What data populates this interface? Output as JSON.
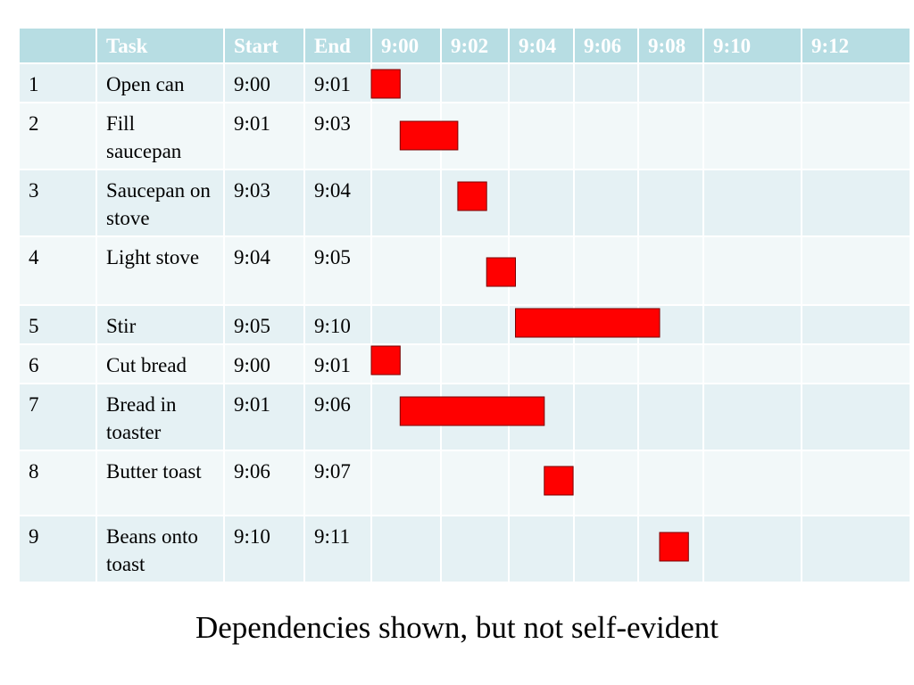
{
  "chart_data": {
    "type": "gantt",
    "columns": [
      "",
      "Task",
      "Start",
      "End"
    ],
    "time_axis": [
      "9:00",
      "9:02",
      "9:04",
      "9:06",
      "9:08",
      "9:10",
      "9:12"
    ],
    "tasks": [
      {
        "id": "1",
        "name": "Open can",
        "start": "9:00",
        "end": "9:01"
      },
      {
        "id": "2",
        "name": "Fill saucepan",
        "start": "9:01",
        "end": "9:03"
      },
      {
        "id": "3",
        "name": "Saucepan on stove",
        "start": "9:03",
        "end": "9:04"
      },
      {
        "id": "4",
        "name": "Light stove",
        "start": "9:04",
        "end": "9:05"
      },
      {
        "id": "5",
        "name": "Stir",
        "start": "9:05",
        "end": "9:10"
      },
      {
        "id": "6",
        "name": "Cut bread",
        "start": "9:00",
        "end": "9:01"
      },
      {
        "id": "7",
        "name": "Bread in toaster",
        "start": "9:01",
        "end": "9:06"
      },
      {
        "id": "8",
        "name": "Butter toast",
        "start": "9:06",
        "end": "9:07"
      },
      {
        "id": "9",
        "name": "Beans onto toast",
        "start": "9:10",
        "end": "9:11"
      }
    ],
    "bar_color": "#ff0000",
    "header_color": "#b7dde3"
  },
  "caption": "Dependencies shown, but not self-evident"
}
